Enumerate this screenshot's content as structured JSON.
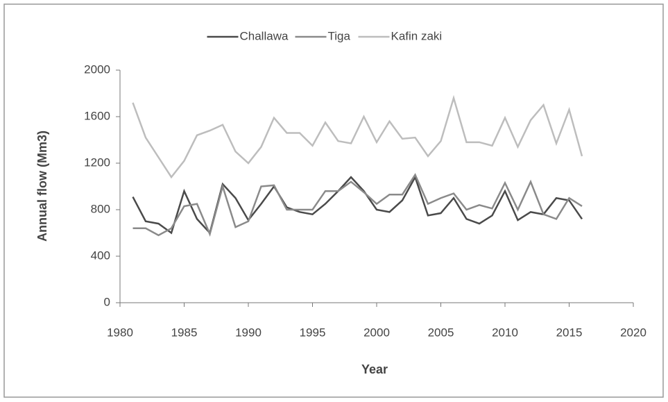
{
  "chart_data": {
    "type": "line",
    "x_label": "Year",
    "y_label": "Annual flow (Mm3)",
    "x": [
      1981,
      1982,
      1983,
      1984,
      1985,
      1986,
      1987,
      1988,
      1989,
      1990,
      1991,
      1992,
      1993,
      1994,
      1995,
      1996,
      1997,
      1998,
      1999,
      2000,
      2001,
      2002,
      2003,
      2004,
      2005,
      2006,
      2007,
      2008,
      2009,
      2010,
      2011,
      2012,
      2013,
      2014,
      2015,
      2016
    ],
    "series": [
      {
        "name": "Challawa",
        "color": "#4a4a4a",
        "values": [
          910,
          700,
          680,
          600,
          960,
          720,
          600,
          1020,
          900,
          710,
          850,
          1000,
          820,
          780,
          760,
          850,
          960,
          1080,
          960,
          800,
          780,
          880,
          1080,
          750,
          770,
          900,
          720,
          680,
          750,
          960,
          710,
          780,
          760,
          900,
          880,
          720
        ]
      },
      {
        "name": "Tiga",
        "color": "#8a8a8a",
        "values": [
          640,
          640,
          580,
          640,
          830,
          850,
          590,
          1000,
          650,
          700,
          1000,
          1010,
          800,
          800,
          800,
          960,
          960,
          1040,
          950,
          850,
          930,
          930,
          1100,
          850,
          900,
          940,
          800,
          840,
          810,
          1030,
          800,
          1040,
          760,
          720,
          900,
          830
        ]
      },
      {
        "name": "Kafin zaki",
        "color": "#bdbdbd",
        "values": [
          1720,
          1420,
          1250,
          1080,
          1220,
          1440,
          1480,
          1530,
          1300,
          1200,
          1340,
          1590,
          1460,
          1460,
          1350,
          1550,
          1390,
          1370,
          1600,
          1380,
          1560,
          1410,
          1420,
          1260,
          1390,
          1760,
          1380,
          1380,
          1350,
          1590,
          1340,
          1570,
          1700,
          1370,
          1660,
          1260
        ]
      }
    ],
    "xlim": [
      1980,
      2020
    ],
    "xticks": [
      1980,
      1985,
      1990,
      1995,
      2000,
      2005,
      2010,
      2015,
      2020
    ],
    "ylim": [
      0,
      2000
    ],
    "yticks": [
      0,
      400,
      800,
      1200,
      1600,
      2000
    ],
    "legend": "top"
  }
}
